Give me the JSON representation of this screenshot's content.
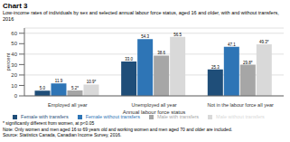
{
  "chart_data": {
    "type": "bar",
    "title": "Chart 3",
    "subtitle": "Low-income rates of individuals by sex and selected annual labour force status, aged 16 and older, with and without transfers, 2016",
    "ylabel": "percent",
    "xlabel": "Annual labour force status",
    "categories": [
      "Employed all year",
      "Unemployed all year",
      "Not in the labour force all year"
    ],
    "series": [
      {
        "name": "Female with transfers",
        "color": "#1f4e79",
        "values": [
          5.0,
          33.0,
          25.3
        ],
        "value_labels": [
          "5.0",
          "33.0",
          "25.3"
        ]
      },
      {
        "name": "Female without transfers",
        "color": "#2e75b6",
        "values": [
          11.9,
          54.3,
          47.1
        ],
        "value_labels": [
          "11.9",
          "54.3",
          "47.1"
        ]
      },
      {
        "name": "Male with transfers",
        "color": "#a6a6a6",
        "values": [
          5.2,
          38.6,
          29.8
        ],
        "value_labels": [
          "5.2*",
          "38.6",
          "29.8*"
        ]
      },
      {
        "name": "Male without transfers",
        "color": "#d9d9d9",
        "values": [
          10.9,
          56.5,
          49.3
        ],
        "value_labels": [
          "10.9*",
          "56.5",
          "49.3*"
        ]
      }
    ],
    "ylim": [
      0,
      65
    ],
    "yticks": [
      0,
      10,
      20,
      30,
      40,
      50,
      60
    ],
    "grid": true,
    "legend": "bottom",
    "data_labels": true,
    "annotations": [
      "* significantly different from women, at p<0.05",
      "Note: Only women and men aged 16 to 69 years old and working women and men aged 70 and older are included.",
      "Source: Statistics Canada, Canadian Income Survey, 2016."
    ]
  }
}
